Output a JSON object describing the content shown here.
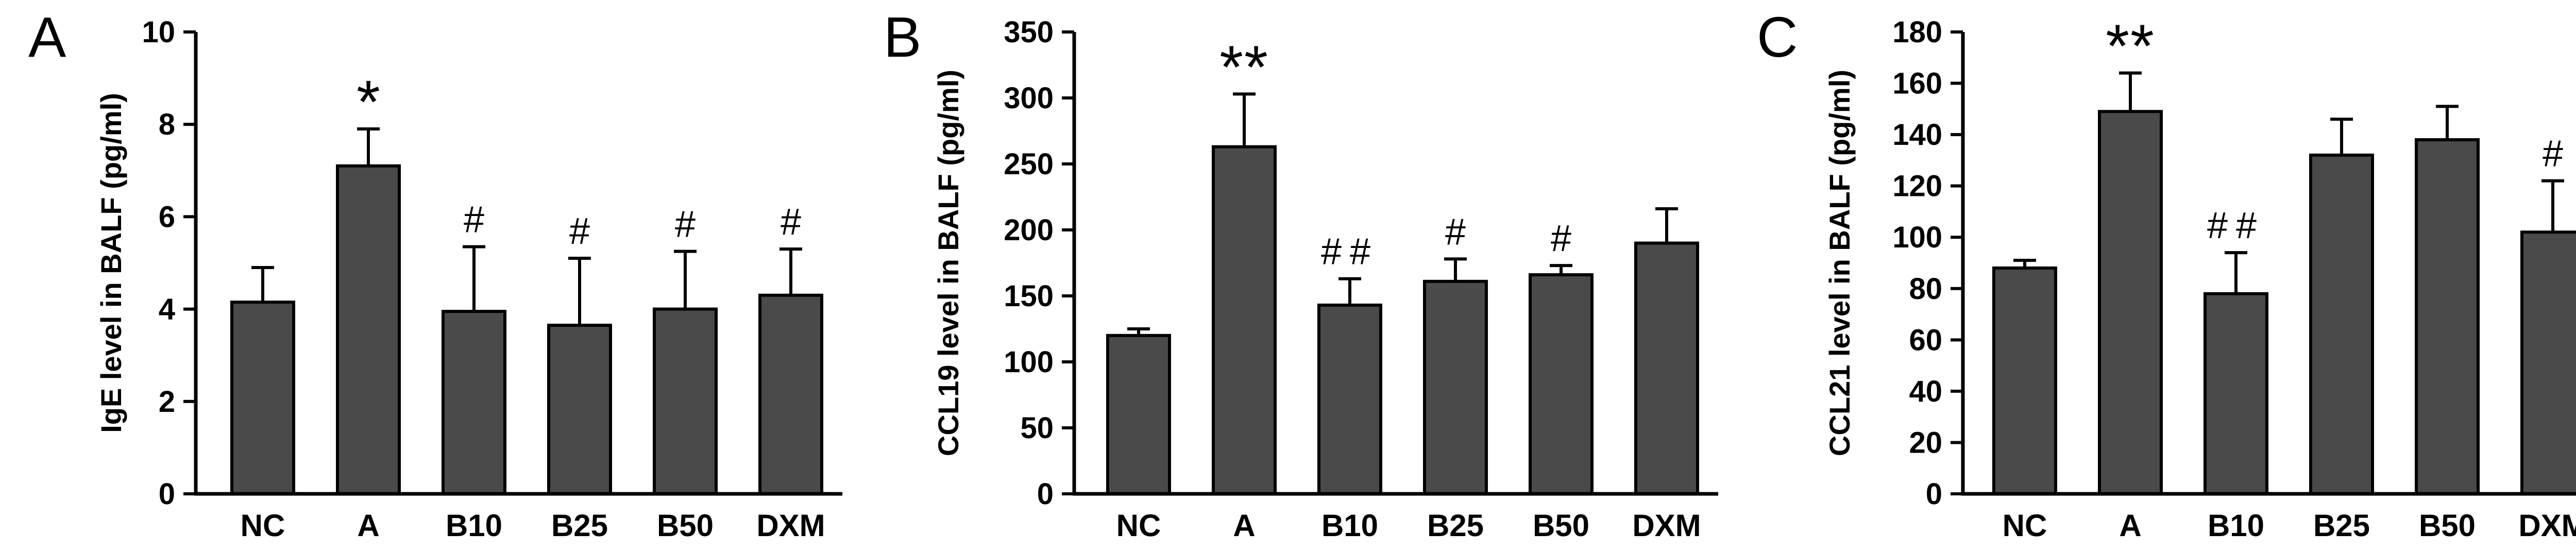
{
  "colors": {
    "bar_fill": "#4a4a4a",
    "stroke": "#000000",
    "background": "#ffffff"
  },
  "chart_data": [
    {
      "type": "bar",
      "panel": "A",
      "ylabel": "IgE level in BALF (pg/ml)",
      "xlabel": "",
      "ylim": [
        0,
        10
      ],
      "yticks": [
        0,
        2,
        4,
        6,
        8,
        10
      ],
      "categories": [
        "NC",
        "A",
        "B10",
        "B25",
        "B50",
        "DXM"
      ],
      "values": [
        4.15,
        7.1,
        3.95,
        3.65,
        4.0,
        4.3
      ],
      "errors": [
        0.75,
        0.8,
        1.4,
        1.45,
        1.25,
        1.0
      ],
      "significance": [
        "",
        "*",
        "#",
        "#",
        "#",
        "#"
      ],
      "grid": false,
      "legend": "none"
    },
    {
      "type": "bar",
      "panel": "B",
      "ylabel": "CCL19 level in BALF (pg/ml)",
      "xlabel": "",
      "ylim": [
        0,
        350
      ],
      "yticks": [
        0,
        50,
        100,
        150,
        200,
        250,
        300,
        350
      ],
      "categories": [
        "NC",
        "A",
        "B10",
        "B25",
        "B50",
        "DXM"
      ],
      "values": [
        120,
        263,
        143,
        161,
        166,
        190
      ],
      "errors": [
        5,
        40,
        20,
        17,
        7,
        26
      ],
      "significance": [
        "",
        "**",
        "##",
        "#",
        "#",
        ""
      ],
      "grid": false,
      "legend": "none"
    },
    {
      "type": "bar",
      "panel": "C",
      "ylabel": "CCL21 level in BALF (pg/ml)",
      "xlabel": "",
      "ylim": [
        0,
        180
      ],
      "yticks": [
        0,
        20,
        40,
        60,
        80,
        100,
        120,
        140,
        160,
        180
      ],
      "categories": [
        "NC",
        "A",
        "B10",
        "B25",
        "B50",
        "DXM"
      ],
      "values": [
        88,
        149,
        78,
        132,
        138,
        102
      ],
      "errors": [
        3,
        15,
        16,
        14,
        13,
        20
      ],
      "significance": [
        "",
        "**",
        "##",
        "",
        "",
        "#"
      ],
      "grid": false,
      "legend": "none"
    }
  ]
}
